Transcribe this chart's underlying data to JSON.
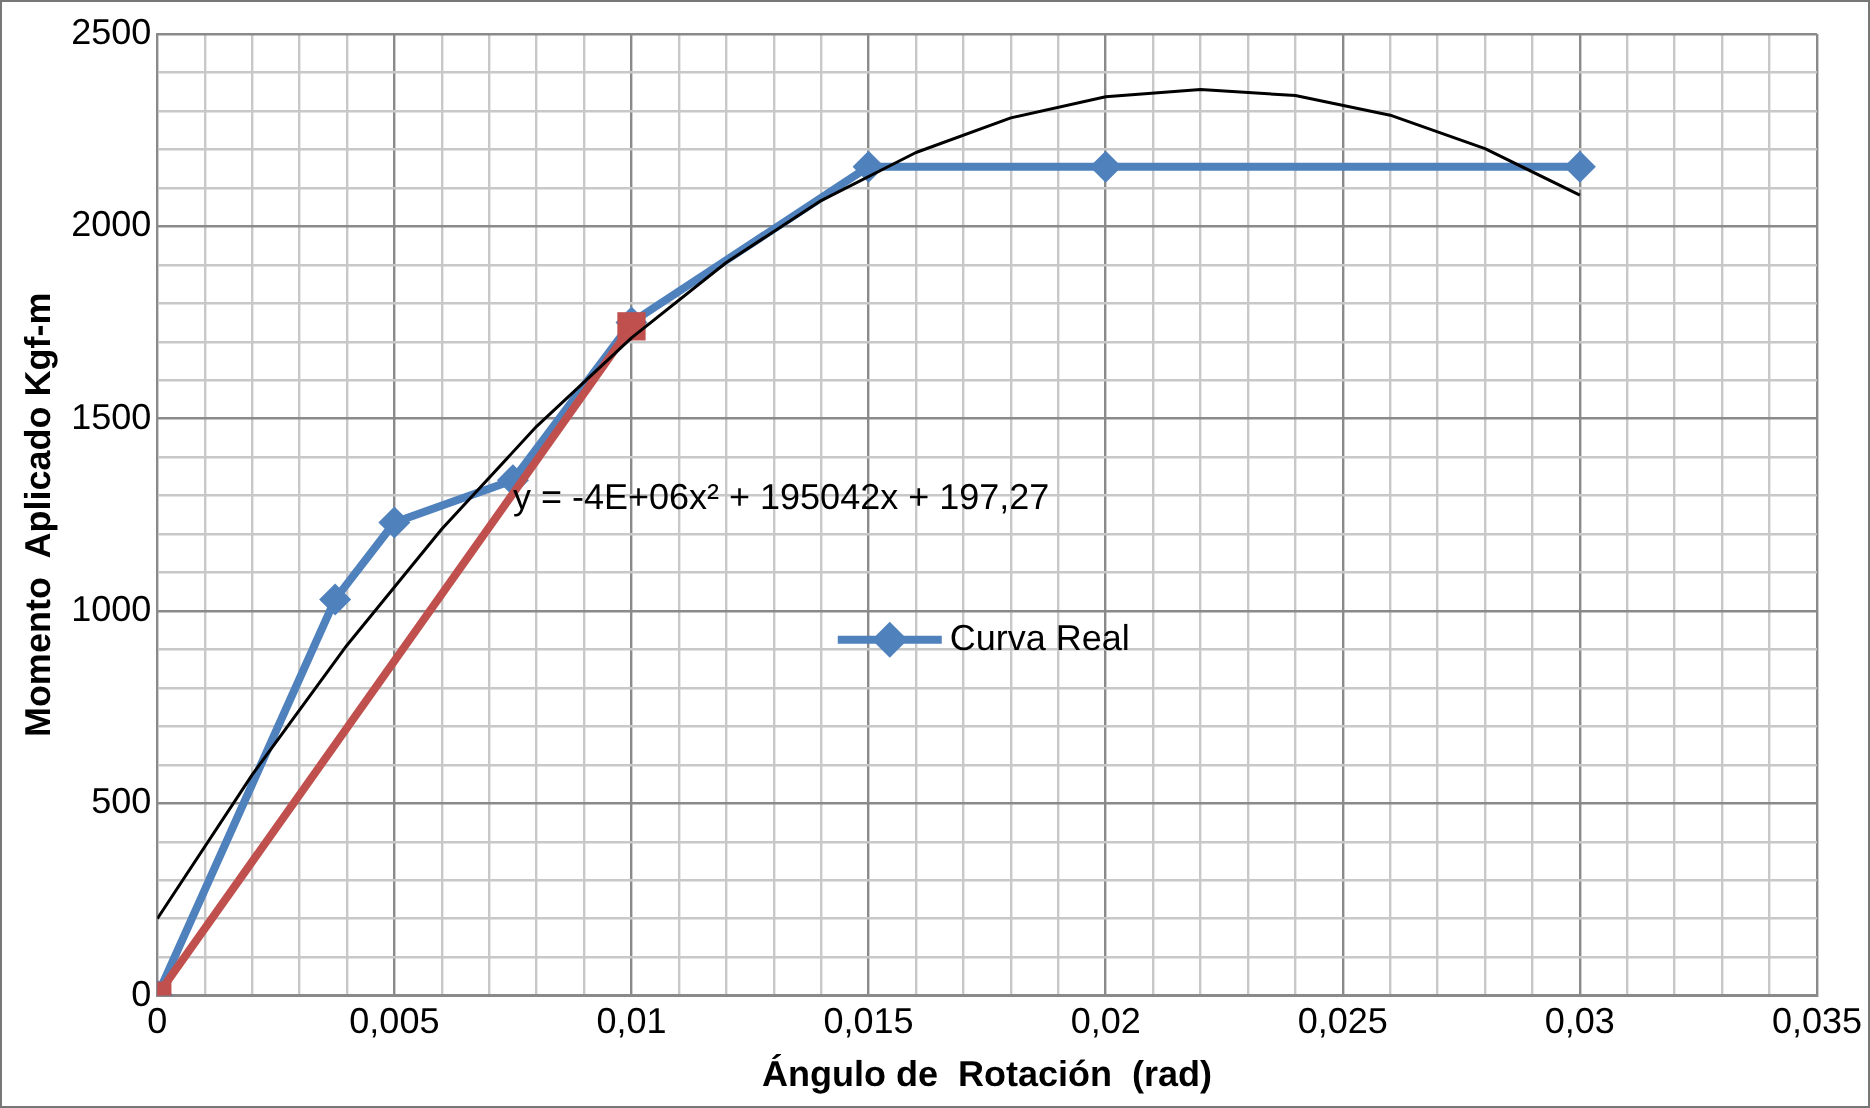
{
  "chart_data": {
    "type": "line",
    "xlabel": "Ángulo de  Rotación  (rad)",
    "ylabel": "Momento  Aplicado Kgf-m",
    "xlim": [
      0,
      0.035
    ],
    "ylim": [
      0,
      2500
    ],
    "xticks": [
      {
        "value": 0,
        "label": "0"
      },
      {
        "value": 0.001,
        "label": null
      },
      {
        "value": 0.002,
        "label": null
      },
      {
        "value": 0.003,
        "label": null
      },
      {
        "value": 0.004,
        "label": null
      },
      {
        "value": 0.005,
        "label": "0,005"
      },
      {
        "value": 0.006,
        "label": null
      },
      {
        "value": 0.007,
        "label": null
      },
      {
        "value": 0.008,
        "label": null
      },
      {
        "value": 0.009,
        "label": null
      },
      {
        "value": 0.01,
        "label": "0,01"
      },
      {
        "value": 0.011,
        "label": null
      },
      {
        "value": 0.012,
        "label": null
      },
      {
        "value": 0.013,
        "label": null
      },
      {
        "value": 0.014,
        "label": null
      },
      {
        "value": 0.015,
        "label": "0,015"
      },
      {
        "value": 0.016,
        "label": null
      },
      {
        "value": 0.017,
        "label": null
      },
      {
        "value": 0.018,
        "label": null
      },
      {
        "value": 0.019,
        "label": null
      },
      {
        "value": 0.02,
        "label": "0,02"
      },
      {
        "value": 0.021,
        "label": null
      },
      {
        "value": 0.022,
        "label": null
      },
      {
        "value": 0.023,
        "label": null
      },
      {
        "value": 0.024,
        "label": null
      },
      {
        "value": 0.025,
        "label": "0,025"
      },
      {
        "value": 0.026,
        "label": null
      },
      {
        "value": 0.027,
        "label": null
      },
      {
        "value": 0.028,
        "label": null
      },
      {
        "value": 0.029,
        "label": null
      },
      {
        "value": 0.03,
        "label": "0,03"
      },
      {
        "value": 0.031,
        "label": null
      },
      {
        "value": 0.032,
        "label": null
      },
      {
        "value": 0.033,
        "label": null
      },
      {
        "value": 0.034,
        "label": null
      },
      {
        "value": 0.035,
        "label": "0,035"
      }
    ],
    "yticks": [
      0,
      {
        "value": 100,
        "label": null
      },
      {
        "value": 200,
        "label": null
      },
      {
        "value": 300,
        "label": null
      },
      {
        "value": 400,
        "label": null
      },
      500,
      {
        "value": 600,
        "label": null
      },
      {
        "value": 700,
        "label": null
      },
      {
        "value": 800,
        "label": null
      },
      {
        "value": 900,
        "label": null
      },
      1000,
      {
        "value": 1100,
        "label": null
      },
      {
        "value": 1200,
        "label": null
      },
      {
        "value": 1300,
        "label": null
      },
      {
        "value": 1400,
        "label": null
      },
      1500,
      {
        "value": 1600,
        "label": null
      },
      {
        "value": 1700,
        "label": null
      },
      {
        "value": 1800,
        "label": null
      },
      {
        "value": 1900,
        "label": null
      },
      2000,
      {
        "value": 2100,
        "label": null
      },
      {
        "value": 2200,
        "label": null
      },
      {
        "value": 2300,
        "label": null
      },
      {
        "value": 2400,
        "label": null
      },
      2500
    ],
    "grid": true,
    "legend": "center",
    "series": [
      {
        "type": "line",
        "color": "#000000",
        "marker": "none",
        "x": [
          0,
          0.002,
          0.004,
          0.006,
          0.008,
          0.01,
          0.012,
          0.014,
          0.016,
          0.018,
          0.02,
          0.022,
          0.024,
          0.026,
          0.028,
          0.03
        ],
        "values": [
          200,
          574,
          911,
          1213,
          1480,
          1710,
          1906,
          2067,
          2192,
          2282,
          2337,
          2356,
          2340,
          2289,
          2202,
          2081
        ]
      },
      {
        "type": "line",
        "color": "#c0504d",
        "marker": "square",
        "x": [
          0,
          0.01
        ],
        "values": [
          0,
          1740
        ]
      },
      {
        "type": "line",
        "name": "Curva Real",
        "color": "#4f81bd",
        "marker": "diamond",
        "x": [
          0,
          0.00375,
          0.005,
          0.0075,
          0.01,
          0.015,
          0.02,
          0.03
        ],
        "values": [
          0,
          1030,
          1230,
          1340,
          1750,
          2155,
          2155,
          2155
        ]
      }
    ],
    "annotations": [
      {
        "text": "y = -4E+06x² + 195042x + 197,27",
        "x": 0.0075,
        "y": 1290
      }
    ]
  }
}
